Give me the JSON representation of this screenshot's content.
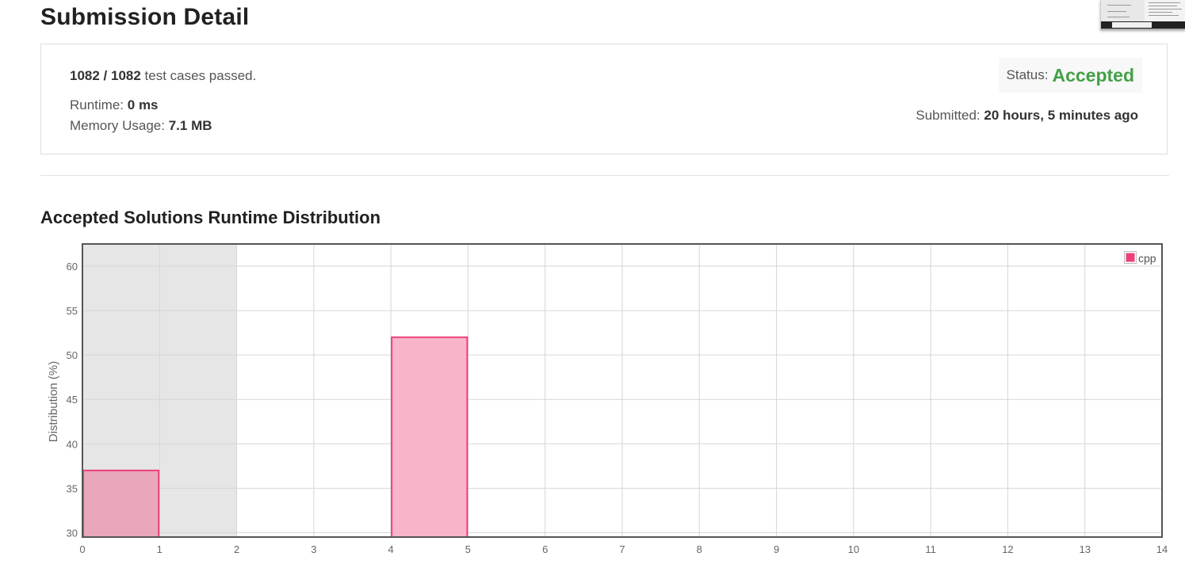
{
  "page_title": "Submission Detail",
  "summary": {
    "test_cases_value": "1082 / 1082",
    "test_cases_text": "test cases passed.",
    "runtime_label": "Runtime:",
    "runtime_value": "0 ms",
    "memory_label": "Memory Usage:",
    "memory_value": "7.1 MB",
    "status_label": "Status:",
    "status_value": "Accepted",
    "submitted_label": "Submitted:",
    "submitted_value": "20 hours, 5 minutes ago"
  },
  "colors": {
    "accepted": "#43a047",
    "bar_fill": "#f8b5c9",
    "bar_stroke": "#ec407a",
    "highlight_band": "#e6e6e6",
    "highlight_bar_fill": "#e8a7ba"
  },
  "chart_title": "Accepted Solutions Runtime Distribution",
  "chart_data": {
    "type": "bar",
    "title": "Accepted Solutions Runtime Distribution",
    "xlabel": "",
    "ylabel": "Distribution (%)",
    "xlim": [
      0,
      14
    ],
    "ylim": [
      29.5,
      62.5
    ],
    "x_ticks": [
      0,
      1,
      2,
      3,
      4,
      5,
      6,
      7,
      8,
      9,
      10,
      11,
      12,
      13,
      14
    ],
    "y_ticks": [
      30,
      35,
      40,
      45,
      50,
      55,
      60
    ],
    "grid": true,
    "legend_position": "top-right",
    "highlight_range": [
      0,
      2
    ],
    "series": [
      {
        "name": "cpp",
        "bins": [
          {
            "x_start": 0,
            "x_end": 1,
            "value": 37
          },
          {
            "x_start": 4,
            "x_end": 5,
            "value": 52
          }
        ]
      }
    ]
  }
}
